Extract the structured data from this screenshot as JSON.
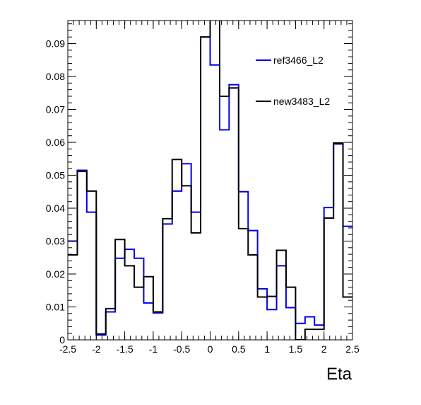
{
  "chart_data": {
    "type": "line",
    "subtype": "step-histogram",
    "title": "",
    "xlabel": "Eta",
    "ylabel": "",
    "xlim": [
      -2.5,
      2.5
    ],
    "ylim": [
      0,
      0.097
    ],
    "grid": false,
    "legend_position": "top-right",
    "x_ticks": [
      -2.5,
      -2,
      -1.5,
      -1,
      -0.5,
      0,
      0.5,
      1,
      1.5,
      2,
      2.5
    ],
    "x_tick_labels": [
      "-2.5",
      "-2",
      "-1.5",
      "-1",
      "-0.5",
      "0",
      "0.5",
      "1",
      "1.5",
      "2",
      "2.5"
    ],
    "y_ticks": [
      0,
      0.01,
      0.02,
      0.03,
      0.04,
      0.05,
      0.06,
      0.07,
      0.08,
      0.09
    ],
    "y_tick_labels": [
      "0",
      "0.01",
      "0.02",
      "0.03",
      "0.04",
      "0.05",
      "0.06",
      "0.07",
      "0.08",
      "0.09"
    ],
    "bin_edges": [
      -2.5,
      -2.333,
      -2.167,
      -2.0,
      -1.833,
      -1.667,
      -1.5,
      -1.333,
      -1.167,
      -1.0,
      -0.833,
      -0.667,
      -0.5,
      -0.333,
      -0.167,
      0.0,
      0.167,
      0.333,
      0.5,
      0.667,
      0.833,
      1.0,
      1.167,
      1.333,
      1.5,
      1.667,
      1.833,
      2.0,
      2.167,
      2.333,
      2.5
    ],
    "series": [
      {
        "name": "ref3466_L2",
        "color": "#0000ee",
        "values": [
          0.03,
          0.0515,
          0.0388,
          0.0015,
          0.0085,
          0.0248,
          0.0275,
          0.0248,
          0.0112,
          0.0082,
          0.0352,
          0.0452,
          0.0535,
          0.0388,
          0.092,
          0.0835,
          0.0638,
          0.0775,
          0.045,
          0.0332,
          0.0155,
          0.0092,
          0.0225,
          0.0098,
          0.005,
          0.007,
          0.0045,
          0.0402,
          0.0595,
          0.0345
        ]
      },
      {
        "name": "new3483_L2",
        "color": "#000000",
        "values": [
          0.0258,
          0.0512,
          0.0452,
          0.0018,
          0.0095,
          0.0305,
          0.0225,
          0.016,
          0.0192,
          0.0085,
          0.0368,
          0.0548,
          0.0468,
          0.0325,
          0.092,
          0.105,
          0.074,
          0.0765,
          0.0338,
          0.0258,
          0.013,
          0.0132,
          0.0272,
          0.016,
          0.0,
          0.0032,
          0.0032,
          0.037,
          0.0598,
          0.013
        ]
      }
    ]
  }
}
